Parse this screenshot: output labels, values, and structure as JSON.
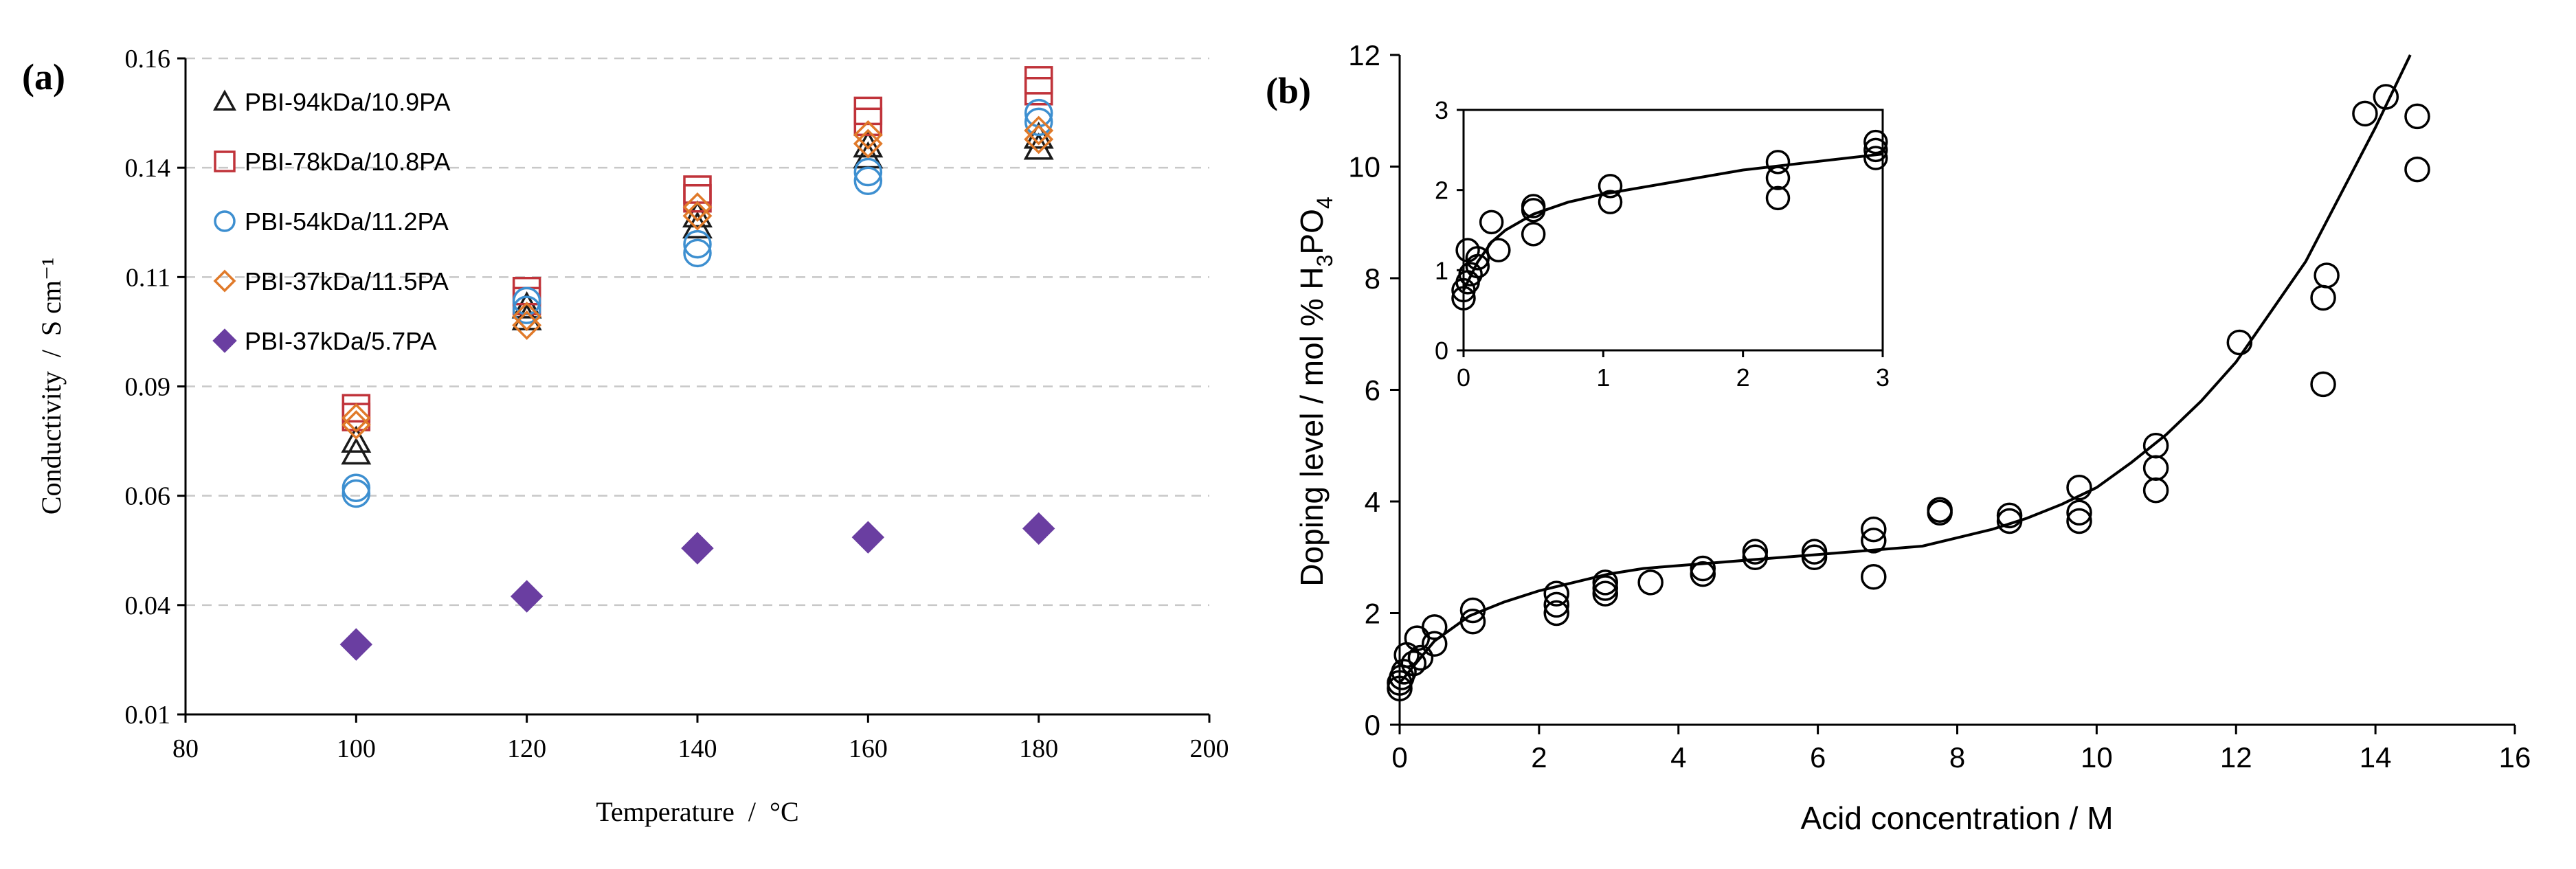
{
  "chart_data": [
    {
      "id": "a",
      "panel_label": "(a)",
      "type": "scatter",
      "xlabel": "Temperature  /  °C",
      "ylabel": "Conductivity  /  S cm⁻¹",
      "xlim": [
        80,
        200
      ],
      "ylim": [
        0.01,
        0.16
      ],
      "x_ticks": [
        "80",
        "100",
        "120",
        "140",
        "160",
        "180",
        "200"
      ],
      "y_ticks": [
        "0.01",
        "0.04",
        "0.06",
        "0.09",
        "0.11",
        "0.14",
        "0.16"
      ],
      "grid": "horizontal dashed",
      "legend_position": "top-left",
      "series": [
        {
          "name": "PBI-94kDa/10.9PA",
          "marker": "triangle-open",
          "color": "#1a1a1a",
          "points": [
            [
              100,
              0.0725
            ],
            [
              100,
              0.0698
            ],
            [
              120,
              0.1032
            ],
            [
              120,
              0.1005
            ],
            [
              140,
              0.124
            ],
            [
              140,
              0.1215
            ],
            [
              160,
              0.14
            ],
            [
              160,
              0.1375
            ],
            [
              180,
              0.142
            ],
            [
              180,
              0.1395
            ]
          ]
        },
        {
          "name": "PBI-78kDa/10.8PA",
          "marker": "square-open",
          "color": "#c0333a",
          "points": [
            [
              100,
              0.08
            ],
            [
              100,
              0.078
            ],
            [
              120,
              0.1068
            ],
            [
              120,
              0.1045
            ],
            [
              140,
              0.13
            ],
            [
              140,
              0.128
            ],
            [
              160,
              0.148
            ],
            [
              160,
              0.1455
            ],
            [
              180,
              0.155
            ],
            [
              180,
              0.1525
            ]
          ]
        },
        {
          "name": "PBI-54kDa/11.2PA",
          "marker": "circle-open",
          "color": "#3d8fd0",
          "points": [
            [
              100,
              0.0618
            ],
            [
              100,
              0.0605
            ],
            [
              120,
              0.1045
            ],
            [
              120,
              0.1025
            ],
            [
              140,
              0.1175
            ],
            [
              140,
              0.1155
            ],
            [
              160,
              0.134
            ],
            [
              160,
              0.132
            ],
            [
              180,
              0.1475
            ],
            [
              180,
              0.1455
            ]
          ]
        },
        {
          "name": "PBI-37kDa/11.5PA",
          "marker": "diamond-open",
          "color": "#e07a2a",
          "points": [
            [
              100,
              0.0778
            ],
            [
              100,
              0.0762
            ],
            [
              120,
              0.101
            ],
            [
              120,
              0.099
            ],
            [
              140,
              0.126
            ],
            [
              140,
              0.124
            ],
            [
              160,
              0.1425
            ],
            [
              160,
              0.1405
            ],
            [
              180,
              0.1435
            ],
            [
              180,
              0.1415
            ]
          ]
        },
        {
          "name": "PBI-37kDa/5.7PA",
          "marker": "diamond-filled",
          "color": "#6a3ea1",
          "points": [
            [
              100,
              0.026
            ],
            [
              120,
              0.037
            ],
            [
              140,
              0.048
            ],
            [
              160,
              0.0505
            ],
            [
              180,
              0.0525
            ]
          ]
        }
      ]
    },
    {
      "id": "b",
      "panel_label": "(b)",
      "type": "scatter",
      "xlabel": "Acid concentration / M",
      "ylabel_main": "Doping level / mol % H",
      "ylabel_sub1": "3",
      "ylabel_mid": "PO",
      "ylabel_sub2": "4",
      "xlim": [
        0,
        16
      ],
      "ylim": [
        0,
        12
      ],
      "x_ticks": [
        "0",
        "2",
        "4",
        "6",
        "8",
        "10",
        "12",
        "14",
        "16"
      ],
      "y_ticks": [
        "0",
        "2",
        "4",
        "6",
        "8",
        "10",
        "12"
      ],
      "marker": "circle-open",
      "color": "#000000",
      "points": [
        [
          0,
          0.65
        ],
        [
          0,
          0.75
        ],
        [
          0.03,
          0.85
        ],
        [
          0.06,
          0.95
        ],
        [
          0.1,
          1.25
        ],
        [
          0.2,
          1.1
        ],
        [
          0.25,
          1.55
        ],
        [
          0.3,
          1.2
        ],
        [
          0.5,
          1.45
        ],
        [
          0.5,
          1.75
        ],
        [
          1.05,
          1.85
        ],
        [
          1.05,
          2.05
        ],
        [
          2.25,
          2.0
        ],
        [
          2.25,
          2.15
        ],
        [
          2.25,
          2.35
        ],
        [
          2.95,
          2.35
        ],
        [
          2.95,
          2.45
        ],
        [
          2.95,
          2.55
        ],
        [
          3.6,
          2.55
        ],
        [
          4.35,
          2.7
        ],
        [
          4.35,
          2.8
        ],
        [
          5.1,
          3.0
        ],
        [
          5.1,
          3.1
        ],
        [
          5.95,
          3.0
        ],
        [
          5.95,
          3.1
        ],
        [
          6.8,
          2.65
        ],
        [
          6.8,
          3.3
        ],
        [
          6.8,
          3.5
        ],
        [
          7.75,
          3.8
        ],
        [
          7.75,
          3.85
        ],
        [
          8.75,
          3.65
        ],
        [
          8.75,
          3.75
        ],
        [
          9.75,
          3.65
        ],
        [
          9.75,
          3.8
        ],
        [
          9.75,
          4.25
        ],
        [
          10.85,
          4.2
        ],
        [
          10.85,
          4.6
        ],
        [
          10.85,
          5.0
        ],
        [
          12.05,
          6.85
        ],
        [
          13.25,
          6.1
        ],
        [
          13.25,
          7.65
        ],
        [
          13.3,
          8.05
        ],
        [
          13.85,
          10.95
        ],
        [
          14.15,
          11.25
        ],
        [
          14.6,
          9.95
        ],
        [
          14.6,
          10.9
        ]
      ],
      "fit_curve": [
        [
          0,
          0.75
        ],
        [
          0.5,
          1.5
        ],
        [
          1,
          1.95
        ],
        [
          1.5,
          2.2
        ],
        [
          2,
          2.4
        ],
        [
          2.5,
          2.55
        ],
        [
          3,
          2.7
        ],
        [
          3.5,
          2.8
        ],
        [
          4,
          2.85
        ],
        [
          4.5,
          2.9
        ],
        [
          5,
          2.95
        ],
        [
          5.5,
          3.0
        ],
        [
          6,
          3.05
        ],
        [
          6.5,
          3.1
        ],
        [
          7,
          3.15
        ],
        [
          7.5,
          3.2
        ],
        [
          8,
          3.35
        ],
        [
          8.5,
          3.5
        ],
        [
          9,
          3.7
        ],
        [
          9.5,
          3.95
        ],
        [
          10,
          4.25
        ],
        [
          10.5,
          4.7
        ],
        [
          11,
          5.2
        ],
        [
          11.5,
          5.8
        ],
        [
          12,
          6.5
        ],
        [
          12.5,
          7.4
        ],
        [
          13,
          8.3
        ],
        [
          13.5,
          9.5
        ],
        [
          14,
          10.7
        ],
        [
          14.5,
          12.0
        ]
      ],
      "inset": {
        "xlim": [
          0,
          3
        ],
        "ylim": [
          0,
          3
        ],
        "x_ticks": [
          "0",
          "1",
          "2",
          "3"
        ],
        "y_ticks": [
          "0",
          "1",
          "2",
          "3"
        ],
        "points": [
          [
            0,
            0.65
          ],
          [
            0,
            0.75
          ],
          [
            0.03,
            0.85
          ],
          [
            0.03,
            1.25
          ],
          [
            0.05,
            0.95
          ],
          [
            0.1,
            1.05
          ],
          [
            0.1,
            1.15
          ],
          [
            0.2,
            1.6
          ],
          [
            0.25,
            1.25
          ],
          [
            0.5,
            1.45
          ],
          [
            0.5,
            1.75
          ],
          [
            0.5,
            1.8
          ],
          [
            1.05,
            1.85
          ],
          [
            1.05,
            2.05
          ],
          [
            2.25,
            1.9
          ],
          [
            2.25,
            2.15
          ],
          [
            2.25,
            2.35
          ],
          [
            2.95,
            2.4
          ],
          [
            2.95,
            2.5
          ],
          [
            2.95,
            2.6
          ]
        ],
        "fit_curve": [
          [
            0,
            0.75
          ],
          [
            0.1,
            1.1
          ],
          [
            0.2,
            1.35
          ],
          [
            0.3,
            1.5
          ],
          [
            0.5,
            1.7
          ],
          [
            0.75,
            1.85
          ],
          [
            1,
            1.95
          ],
          [
            1.5,
            2.1
          ],
          [
            2,
            2.25
          ],
          [
            2.5,
            2.35
          ],
          [
            3,
            2.45
          ]
        ]
      }
    }
  ]
}
